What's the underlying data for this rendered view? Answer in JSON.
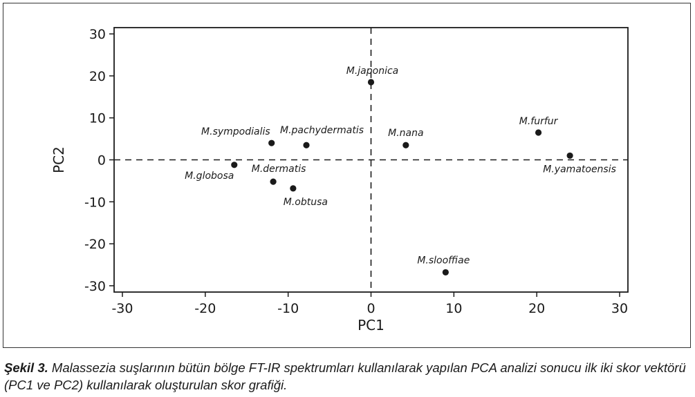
{
  "chart_data": {
    "type": "scatter",
    "xlabel": "PC1",
    "ylabel": "PC2",
    "xlim": [
      -31,
      31
    ],
    "ylim": [
      -31.5,
      31.5
    ],
    "xticks": [
      -30,
      -20,
      -10,
      0,
      10,
      20,
      30
    ],
    "yticks": [
      -30,
      -20,
      -10,
      0,
      10,
      20,
      30
    ],
    "grid": false,
    "reference_lines": {
      "x": 0,
      "y": 0,
      "style": "dashed"
    },
    "points": [
      {
        "label": "M.japonica",
        "x": 0,
        "y": 18.5
      },
      {
        "label": "M.sympodialis",
        "x": -12,
        "y": 4
      },
      {
        "label": "M.pachydermatis",
        "x": -7.8,
        "y": 3.5
      },
      {
        "label": "M.nana",
        "x": 4.2,
        "y": 3.5
      },
      {
        "label": "M.furfur",
        "x": 20.2,
        "y": 6.5
      },
      {
        "label": "M.yamatoensis",
        "x": 24,
        "y": 1
      },
      {
        "label": "M.globosa",
        "x": -16.5,
        "y": -1.2
      },
      {
        "label": "M.dermatis",
        "x": -11.8,
        "y": -5.2
      },
      {
        "label": "M.obtusa",
        "x": -9.4,
        "y": -6.8
      },
      {
        "label": "M.slooffiae",
        "x": 9,
        "y": -26.8
      }
    ]
  },
  "caption": {
    "label": "Şekil 3.",
    "text": "Malassezia suşlarının bütün bölge FT-IR spektrumları kullanılarak yapılan PCA analizi sonucu ilk iki skor vektörü (PC1 ve PC2) kullanılarak oluşturulan skor grafiği."
  },
  "colors": {
    "point": "#1a1a1a",
    "axis": "#1a1a1a"
  }
}
